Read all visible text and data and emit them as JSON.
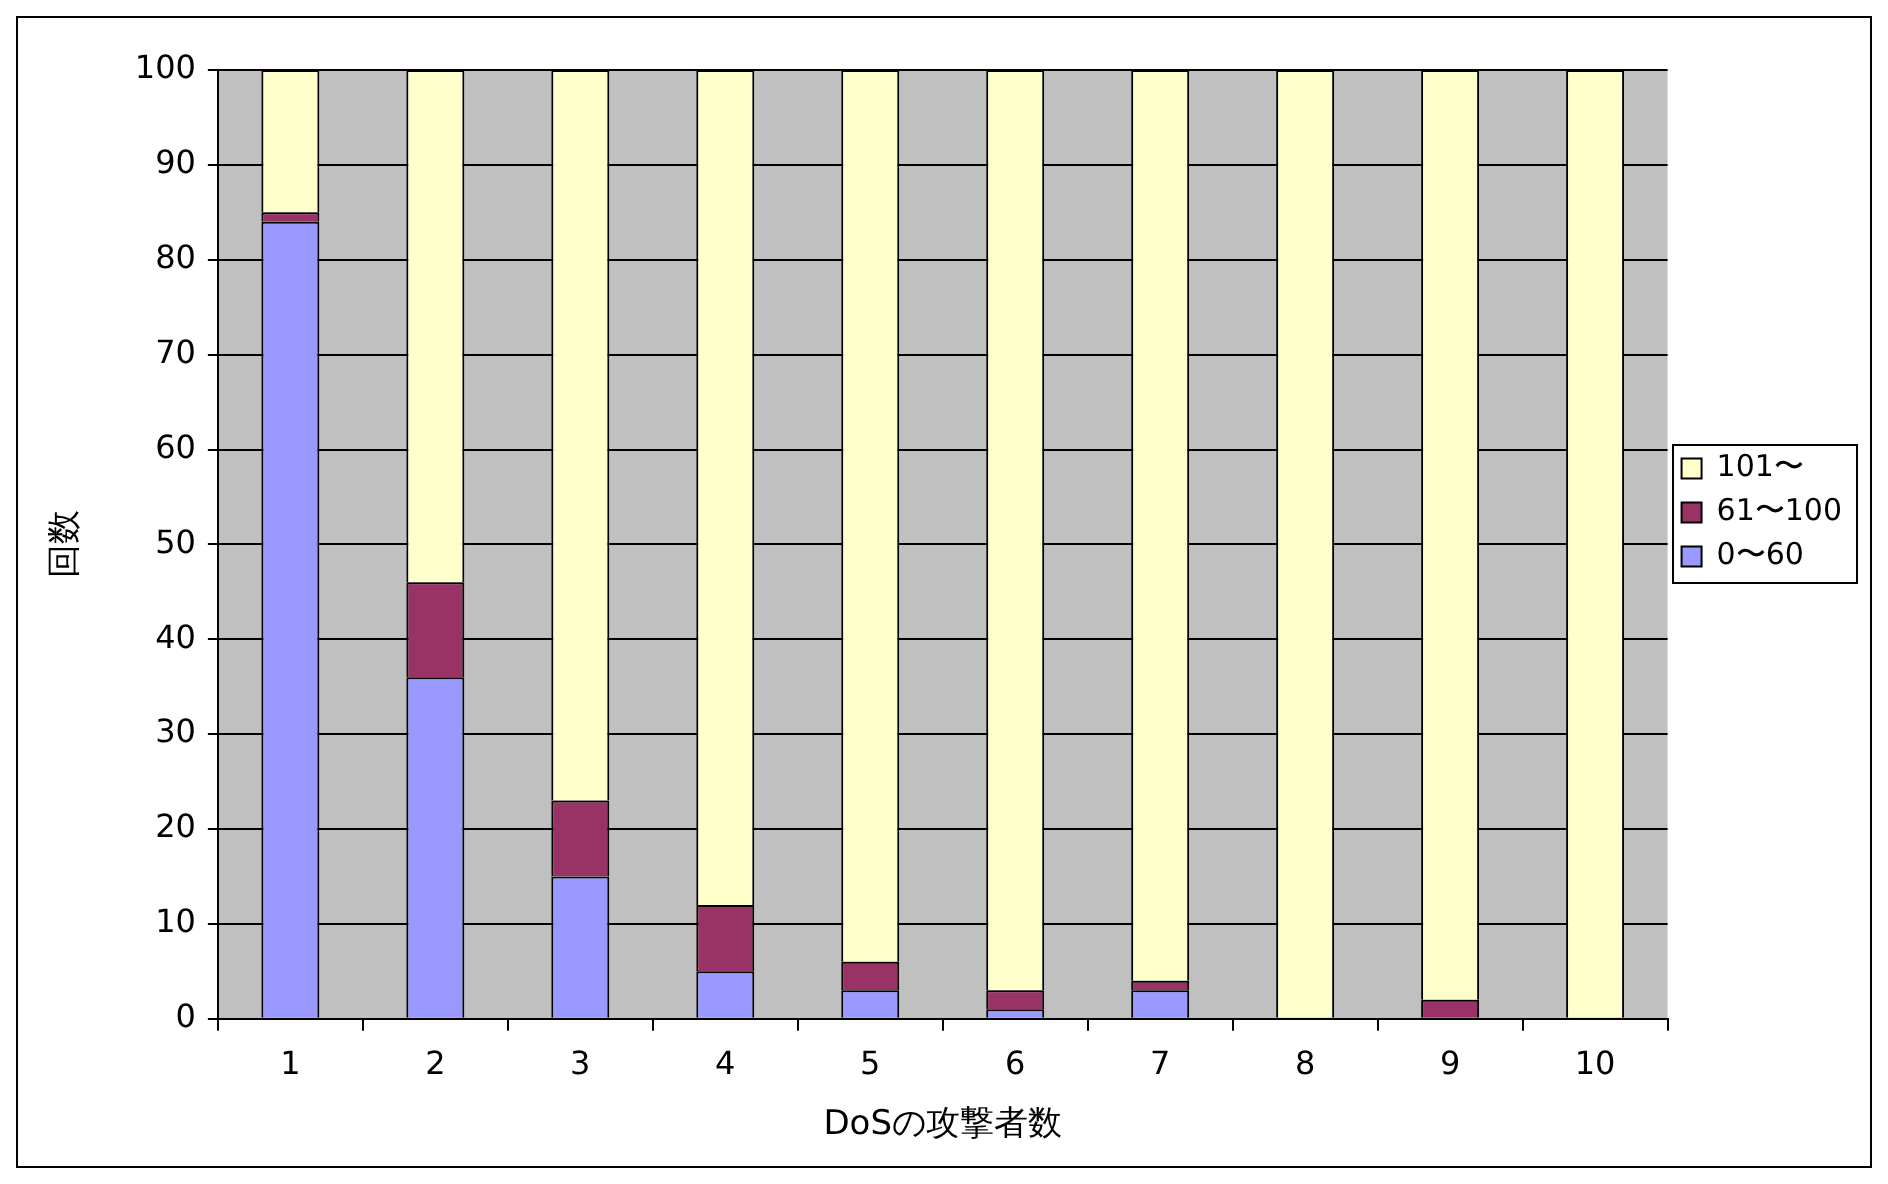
{
  "chart_data": {
    "type": "bar",
    "stacked": true,
    "xlabel": "DoSの攻撃者数",
    "ylabel": "回数",
    "categories": [
      "1",
      "2",
      "3",
      "4",
      "5",
      "6",
      "7",
      "8",
      "9",
      "10"
    ],
    "series": [
      {
        "name": "0〜60",
        "color": "#9999ff",
        "values": [
          84,
          36,
          15,
          5,
          3,
          1,
          3,
          0,
          0,
          0
        ]
      },
      {
        "name": "61〜100",
        "color": "#993366",
        "values": [
          1,
          10,
          8,
          7,
          3,
          2,
          1,
          0,
          2,
          0
        ]
      },
      {
        "name": "101〜",
        "color": "#ffffcc",
        "values": [
          15,
          54,
          77,
          88,
          94,
          97,
          96,
          100,
          98,
          100
        ]
      }
    ],
    "ylim": [
      0,
      100
    ],
    "yticks": [
      0,
      10,
      20,
      30,
      40,
      50,
      60,
      70,
      80,
      90,
      100
    ],
    "grid": "y",
    "legend": "right"
  }
}
